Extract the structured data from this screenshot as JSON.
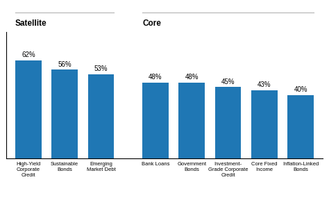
{
  "chart_data": {
    "type": "bar",
    "categories": [
      "High-Yield\nCorporate\nCredit",
      "Sustainable\nBonds",
      "Emerging\nMarket Debt",
      "Bank Loans",
      "Government\nBonds",
      "Investment-\nGrade Corporate\nCredit",
      "Core Fixed\nIncome",
      "Inflation-Linked\nBonds"
    ],
    "values": [
      62,
      56,
      53,
      48,
      48,
      45,
      43,
      40
    ],
    "value_labels": [
      "62%",
      "56%",
      "53%",
      "48%",
      "48%",
      "45%",
      "43%",
      "40%"
    ],
    "data_labels": true,
    "ylim": [
      0,
      80
    ],
    "tick_labels": "x",
    "groups": [
      {
        "name": "Satellite",
        "count": 3
      },
      {
        "name": "Core",
        "count": 5
      }
    ]
  }
}
